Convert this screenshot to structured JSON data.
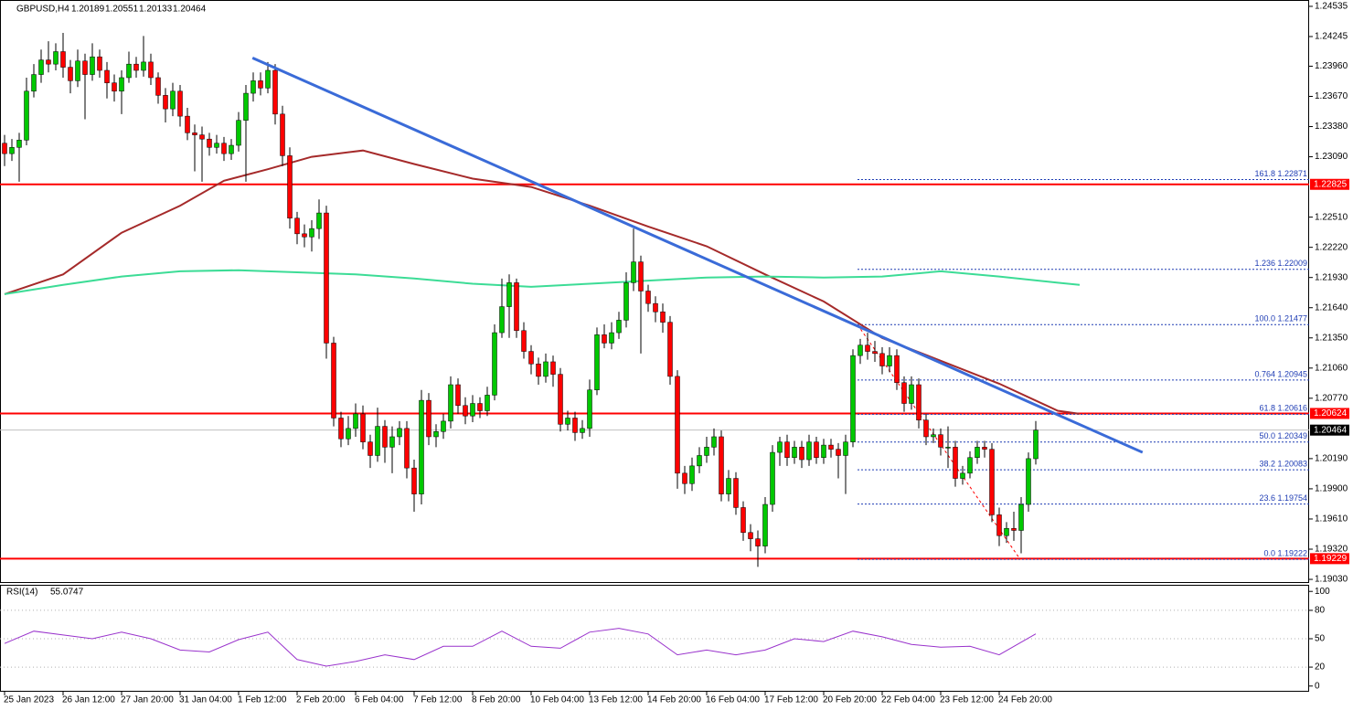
{
  "chart_data": {
    "type": "candlestick",
    "symbol": "GBPUSD,H4",
    "ylim": [
      1.19004,
      1.24596
    ],
    "xlim": [
      -0.625,
      178.375
    ],
    "yticks": [
      1.24535,
      1.24245,
      {
        "value": 1.2396,
        "label": "1.23960"
      },
      {
        "value": 1.2367,
        "label": "1.23670"
      },
      {
        "value": 1.2338,
        "label": "1.23380"
      },
      {
        "value": 1.2309,
        "label": "1.23090"
      },
      {
        "value": 1.2251,
        "label": "1.22510"
      },
      {
        "value": 1.2222,
        "label": "1.22220"
      },
      {
        "value": 1.2193,
        "label": "1.21930"
      },
      {
        "value": 1.2164,
        "label": "1.21640"
      },
      {
        "value": 1.2135,
        "label": "1.21350"
      },
      {
        "value": 1.2106,
        "label": "1.21060"
      },
      {
        "value": 1.2077,
        "label": "1.20770"
      },
      {
        "value": 1.2019,
        "label": "1.20190"
      },
      {
        "value": 1.199,
        "label": "1.19900"
      },
      {
        "value": 1.1961,
        "label": "1.19610"
      },
      {
        "value": 1.1932,
        "label": "1.19320"
      },
      {
        "value": 1.1903,
        "label": "1.19030"
      }
    ],
    "categories": [
      "25 Jan 2023",
      null,
      null,
      null,
      null,
      null,
      null,
      null,
      "26 Jan 12:00",
      null,
      null,
      null,
      null,
      null,
      null,
      null,
      "27 Jan 20:00",
      null,
      null,
      null,
      null,
      null,
      null,
      null,
      "31 Jan 04:00",
      null,
      null,
      null,
      null,
      null,
      null,
      null,
      "1 Feb 12:00",
      null,
      null,
      null,
      null,
      null,
      null,
      null,
      "2 Feb 20:00",
      null,
      null,
      null,
      null,
      null,
      null,
      null,
      "6 Feb 04:00",
      null,
      null,
      null,
      null,
      null,
      null,
      null,
      "7 Feb 12:00",
      null,
      null,
      null,
      null,
      null,
      null,
      null,
      "8 Feb 20:00",
      null,
      null,
      null,
      null,
      null,
      null,
      null,
      "10 Feb 04:00",
      null,
      null,
      null,
      null,
      null,
      null,
      null,
      "13 Feb 12:00",
      null,
      null,
      null,
      null,
      null,
      null,
      null,
      "14 Feb 20:00",
      null,
      null,
      null,
      null,
      null,
      null,
      null,
      "16 Feb 04:00",
      null,
      null,
      null,
      null,
      null,
      null,
      null,
      "17 Feb 12:00",
      null,
      null,
      null,
      null,
      null,
      null,
      null,
      "20 Feb 20:00",
      null,
      null,
      null,
      null,
      null,
      null,
      null,
      "22 Feb 04:00",
      null,
      null,
      null,
      null,
      null,
      null,
      null,
      "23 Feb 12:00",
      null,
      null,
      null,
      null,
      null,
      null,
      null,
      "24 Feb 20:00",
      null,
      null,
      null,
      null,
      null
    ],
    "up_color": "#00c800",
    "down_color": "#ff0000",
    "candles": [
      [
        1.2322,
        1.233,
        1.23,
        1.2312
      ],
      [
        1.2312,
        1.2326,
        1.2305,
        1.2318
      ],
      [
        1.2318,
        1.2332,
        1.2285,
        1.2325
      ],
      [
        1.2325,
        1.2385,
        1.232,
        1.2372
      ],
      [
        1.2372,
        1.2398,
        1.2366,
        1.2388
      ],
      [
        1.2388,
        1.2412,
        1.238,
        1.2402
      ],
      [
        1.2402,
        1.242,
        1.239,
        1.2398
      ],
      [
        1.2398,
        1.2418,
        1.2392,
        1.241
      ],
      [
        1.241,
        1.2428,
        1.2385,
        1.2395
      ],
      [
        1.2395,
        1.2402,
        1.237,
        1.2382
      ],
      [
        1.2382,
        1.2412,
        1.2376,
        1.2401
      ],
      [
        1.2401,
        1.2408,
        1.2345,
        1.2388
      ],
      [
        1.2388,
        1.2418,
        1.2382,
        1.2405
      ],
      [
        1.2405,
        1.2412,
        1.2385,
        1.2392
      ],
      [
        1.2392,
        1.24,
        1.2365,
        1.238
      ],
      [
        1.238,
        1.2388,
        1.2362,
        1.2372
      ],
      [
        1.2372,
        1.2392,
        1.235,
        1.2385
      ],
      [
        1.2385,
        1.241,
        1.238,
        1.2398
      ],
      [
        1.2398,
        1.2405,
        1.2385,
        1.2392
      ],
      [
        1.2392,
        1.2425,
        1.2386,
        1.24
      ],
      [
        1.24,
        1.2408,
        1.2378,
        1.2385
      ],
      [
        1.2385,
        1.239,
        1.236,
        1.2368
      ],
      [
        1.2368,
        1.2375,
        1.2342,
        1.2355
      ],
      [
        1.2355,
        1.238,
        1.2348,
        1.2372
      ],
      [
        1.2372,
        1.2378,
        1.2338,
        1.2348
      ],
      [
        1.2348,
        1.2356,
        1.2325,
        1.2332
      ],
      [
        1.2332,
        1.234,
        1.2295,
        1.233
      ],
      [
        1.233,
        1.2338,
        1.2285,
        1.2326
      ],
      [
        1.2326,
        1.2332,
        1.231,
        1.2318
      ],
      [
        1.2318,
        1.233,
        1.2312,
        1.2322
      ],
      [
        1.2322,
        1.2328,
        1.2305,
        1.2312
      ],
      [
        1.2312,
        1.2326,
        1.2306,
        1.232
      ],
      [
        1.232,
        1.2352,
        1.2314,
        1.2344
      ],
      [
        1.2344,
        1.2378,
        1.2285,
        1.237
      ],
      [
        1.237,
        1.239,
        1.2362,
        1.2382
      ],
      [
        1.2382,
        1.239,
        1.2368,
        1.2375
      ],
      [
        1.2375,
        1.24,
        1.237,
        1.2392
      ],
      [
        1.2392,
        1.2398,
        1.234,
        1.235
      ],
      [
        1.235,
        1.2358,
        1.23,
        1.231
      ],
      [
        1.231,
        1.2318,
        1.224,
        1.225
      ],
      [
        1.225,
        1.2256,
        1.2225,
        1.2235
      ],
      [
        1.2235,
        1.2244,
        1.2222,
        1.2232
      ],
      [
        1.2232,
        1.2248,
        1.2218,
        1.224
      ],
      [
        1.224,
        1.2268,
        1.223,
        1.2255
      ],
      [
        1.2255,
        1.2262,
        1.2115,
        1.213
      ],
      [
        1.213,
        1.2136,
        1.205,
        1.2058
      ],
      [
        1.2058,
        1.2064,
        1.203,
        1.2038
      ],
      [
        1.2038,
        1.206,
        1.2032,
        1.2048
      ],
      [
        1.2048,
        1.2072,
        1.204,
        1.2062
      ],
      [
        1.2062,
        1.207,
        1.2028,
        1.2035
      ],
      [
        1.2035,
        1.2042,
        1.201,
        1.2022
      ],
      [
        1.2022,
        1.2068,
        1.2016,
        1.205
      ],
      [
        1.205,
        1.2056,
        1.2015,
        1.203
      ],
      [
        1.203,
        1.205,
        1.2005,
        1.204
      ],
      [
        1.204,
        1.2055,
        1.2032,
        1.2048
      ],
      [
        1.2048,
        1.2055,
        1.2,
        1.201
      ],
      [
        1.201,
        1.2018,
        1.1968,
        1.1985
      ],
      [
        1.1985,
        1.2085,
        1.1975,
        1.2075
      ],
      [
        1.2075,
        1.2082,
        1.2032,
        1.204
      ],
      [
        1.204,
        1.2052,
        1.203,
        1.2045
      ],
      [
        1.2045,
        1.2062,
        1.2038,
        1.2055
      ],
      [
        1.2055,
        1.2098,
        1.2048,
        1.209
      ],
      [
        1.209,
        1.2096,
        1.2062,
        1.207
      ],
      [
        1.207,
        1.2078,
        1.2052,
        1.206
      ],
      [
        1.206,
        1.208,
        1.2054,
        1.2072
      ],
      [
        1.2072,
        1.2078,
        1.2058,
        1.2065
      ],
      [
        1.2065,
        1.2088,
        1.206,
        1.208
      ],
      [
        1.208,
        1.2148,
        1.2075,
        1.214
      ],
      [
        1.214,
        1.2192,
        1.2135,
        1.2165
      ],
      [
        1.2165,
        1.2196,
        1.2135,
        1.2188
      ],
      [
        1.2188,
        1.2192,
        1.2135,
        1.2142
      ],
      [
        1.2142,
        1.215,
        1.2115,
        1.2122
      ],
      [
        1.2122,
        1.2128,
        1.21,
        1.211
      ],
      [
        1.211,
        1.2116,
        1.209,
        1.2098
      ],
      [
        1.2098,
        1.212,
        1.2092,
        1.2112
      ],
      [
        1.2112,
        1.2118,
        1.2088,
        1.21
      ],
      [
        1.21,
        1.2106,
        1.2045,
        1.2052
      ],
      [
        1.2052,
        1.2065,
        1.2046,
        1.2058
      ],
      [
        1.2058,
        1.2064,
        1.2036,
        1.2044
      ],
      [
        1.2044,
        1.2056,
        1.2038,
        1.2048
      ],
      [
        1.2048,
        1.2095,
        1.204,
        1.2085
      ],
      [
        1.2085,
        1.2145,
        1.208,
        1.2138
      ],
      [
        1.2138,
        1.2148,
        1.2125,
        1.213
      ],
      [
        1.213,
        1.215,
        1.2124,
        1.214
      ],
      [
        1.214,
        1.216,
        1.2134,
        1.2152
      ],
      [
        1.2152,
        1.2198,
        1.2145,
        1.2188
      ],
      [
        1.2188,
        1.224,
        1.218,
        1.2208
      ],
      [
        1.2208,
        1.2214,
        1.212,
        1.218
      ],
      [
        1.218,
        1.2186,
        1.216,
        1.2168
      ],
      [
        1.2168,
        1.2175,
        1.215,
        1.216
      ],
      [
        1.216,
        1.2168,
        1.214,
        1.215
      ],
      [
        1.215,
        1.2156,
        1.209,
        1.2098
      ],
      [
        1.2098,
        1.2104,
        1.199,
        1.2005
      ],
      [
        1.2005,
        1.2012,
        1.1985,
        1.1995
      ],
      [
        1.1995,
        1.202,
        1.1988,
        1.2012
      ],
      [
        1.2012,
        1.203,
        1.2005,
        1.2022
      ],
      [
        1.2022,
        1.204,
        1.2015,
        1.203
      ],
      [
        1.203,
        1.2048,
        1.2022,
        1.204
      ],
      [
        1.204,
        1.2046,
        1.1978,
        1.1985
      ],
      [
        1.1985,
        1.2008,
        1.1978,
        1.2
      ],
      [
        1.2,
        1.2006,
        1.1965,
        1.1972
      ],
      [
        1.1972,
        1.1978,
        1.194,
        1.1948
      ],
      [
        1.1948,
        1.1956,
        1.193,
        1.1942
      ],
      [
        1.1942,
        1.195,
        1.1915,
        1.1935
      ],
      [
        1.1935,
        1.1982,
        1.1928,
        1.1975
      ],
      [
        1.1975,
        1.2032,
        1.1968,
        1.2025
      ],
      [
        1.2025,
        1.204,
        1.2012,
        1.2035
      ],
      [
        1.2035,
        1.2042,
        1.2012,
        1.202
      ],
      [
        1.202,
        1.2036,
        1.2014,
        1.203
      ],
      [
        1.203,
        1.2036,
        1.201,
        1.2018
      ],
      [
        1.2018,
        1.2042,
        1.2012,
        1.2035
      ],
      [
        1.2035,
        1.204,
        1.2014,
        1.202
      ],
      [
        1.202,
        1.2038,
        1.2014,
        1.2032
      ],
      [
        1.2032,
        1.2038,
        1.202,
        1.2028
      ],
      [
        1.2028,
        1.2034,
        1.2,
        1.2022
      ],
      [
        1.2022,
        1.2042,
        1.1985,
        1.2035
      ],
      [
        1.2035,
        1.2124,
        1.203,
        1.2118
      ],
      [
        1.2118,
        1.2134,
        1.211,
        1.2128
      ],
      [
        1.2128,
        1.214,
        1.2114,
        1.2122
      ],
      [
        1.2122,
        1.2132,
        1.2112,
        1.212
      ],
      [
        1.212,
        1.2126,
        1.21,
        1.2108
      ],
      [
        1.2108,
        1.2126,
        1.2102,
        1.2118
      ],
      [
        1.2118,
        1.2124,
        1.2085,
        1.2092
      ],
      [
        1.2092,
        1.2098,
        1.2064,
        1.2072
      ],
      [
        1.2072,
        1.2098,
        1.2066,
        1.209
      ],
      [
        1.209,
        1.2096,
        1.2048,
        1.2056
      ],
      [
        1.2056,
        1.2062,
        1.2032,
        1.204
      ],
      [
        1.204,
        1.2048,
        1.2034,
        1.2042
      ],
      [
        1.2042,
        1.2048,
        1.2022,
        1.203
      ],
      [
        1.203,
        1.205,
        1.201,
        1.203
      ],
      [
        1.203,
        1.2036,
        1.1992,
        1.2
      ],
      [
        1.2,
        1.2012,
        1.1994,
        1.2005
      ],
      [
        1.2005,
        1.2026,
        1.2,
        1.202
      ],
      [
        1.202,
        1.2036,
        1.2014,
        1.203
      ],
      [
        1.203,
        1.2036,
        1.202,
        1.2028
      ],
      [
        1.2028,
        1.2034,
        1.1958,
        1.1965
      ],
      [
        1.1965,
        1.1972,
        1.1935,
        1.1945
      ],
      [
        1.1945,
        1.1958,
        1.1938,
        1.1952
      ],
      [
        1.1952,
        1.1968,
        1.194,
        1.195
      ],
      [
        1.195,
        1.1982,
        1.1928,
        1.1975
      ],
      [
        1.1975,
        1.2025,
        1.1968,
        1.2019
      ],
      [
        1.20189,
        1.20551,
        1.20133,
        1.20464
      ]
    ],
    "moving_averages": [
      {
        "color": "#a52a2a",
        "x": [
          0,
          8,
          16,
          24,
          30,
          36,
          42,
          49,
          56,
          64,
          72,
          80,
          88,
          96,
          104,
          112,
          120,
          128,
          136,
          144,
          147
        ],
        "values": [
          1.2177,
          1.2196,
          1.2236,
          1.2262,
          1.2286,
          1.2297,
          1.2309,
          1.2315,
          1.2302,
          1.2288,
          1.228,
          1.2262,
          1.2242,
          1.2223,
          1.2196,
          1.217,
          1.2135,
          1.2113,
          1.2091,
          1.2065,
          1.2062
        ]
      },
      {
        "color": "#3cdc96",
        "x": [
          0,
          8,
          16,
          24,
          32,
          40,
          48,
          56,
          64,
          72,
          80,
          88,
          96,
          104,
          112,
          120,
          128,
          136,
          144,
          147
        ],
        "values": [
          1.2177,
          1.2186,
          1.2194,
          1.2199,
          1.22,
          1.2198,
          1.2196,
          1.2192,
          1.2187,
          1.2184,
          1.2187,
          1.219,
          1.2193,
          1.2194,
          1.2193,
          1.2194,
          1.2199,
          1.2194,
          1.2188,
          1.2186
        ]
      }
    ],
    "trendline": {
      "color": "#3a6bd8",
      "x": [
        33.9,
        155.6
      ],
      "values": [
        1.2404,
        1.2025
      ]
    },
    "levels": [
      1.22825,
      1.20624,
      1.19229
    ],
    "level_color": "#ff0000",
    "fibonacci": [
      {
        "label": "161.8 1.22871",
        "value": 1.22871
      },
      {
        "label": "1.236 1.22009",
        "value": 1.22009
      },
      {
        "label": "100.0 1.21477",
        "value": 1.21477
      },
      {
        "label": "0.764 1.20945",
        "value": 1.20945
      },
      {
        "label": "61.8 1.20616",
        "value": 1.20616
      },
      {
        "label": "50.0 1.20349",
        "value": 1.20349
      },
      {
        "label": "38.2 1.20083",
        "value": 1.20083
      },
      {
        "label": "23.6 1.19754",
        "value": 1.19754
      },
      {
        "label": "0.0 1.19222",
        "value": 1.19222
      }
    ],
    "rsi": {
      "title": "RSI(14)",
      "color": "#9932cc",
      "ylim": [
        -6,
        106
      ],
      "yticks": [
        100,
        80,
        50,
        20,
        0
      ],
      "x": [
        0,
        4,
        8,
        12,
        16,
        20,
        24,
        28,
        32,
        36,
        40,
        44,
        48,
        52,
        56,
        60,
        64,
        68,
        72,
        76,
        80,
        84,
        88,
        92,
        96,
        100,
        104,
        108,
        112,
        116,
        120,
        124,
        128,
        132,
        136,
        141
      ],
      "values": [
        45,
        58,
        54,
        50,
        57,
        50,
        38,
        36,
        49,
        57,
        28,
        21,
        26,
        33,
        28,
        42,
        42,
        58,
        42,
        40,
        57,
        61,
        55,
        33,
        38,
        33,
        38,
        50,
        47,
        58,
        52,
        44,
        41,
        42,
        33,
        55.0747
      ]
    }
  }
}
